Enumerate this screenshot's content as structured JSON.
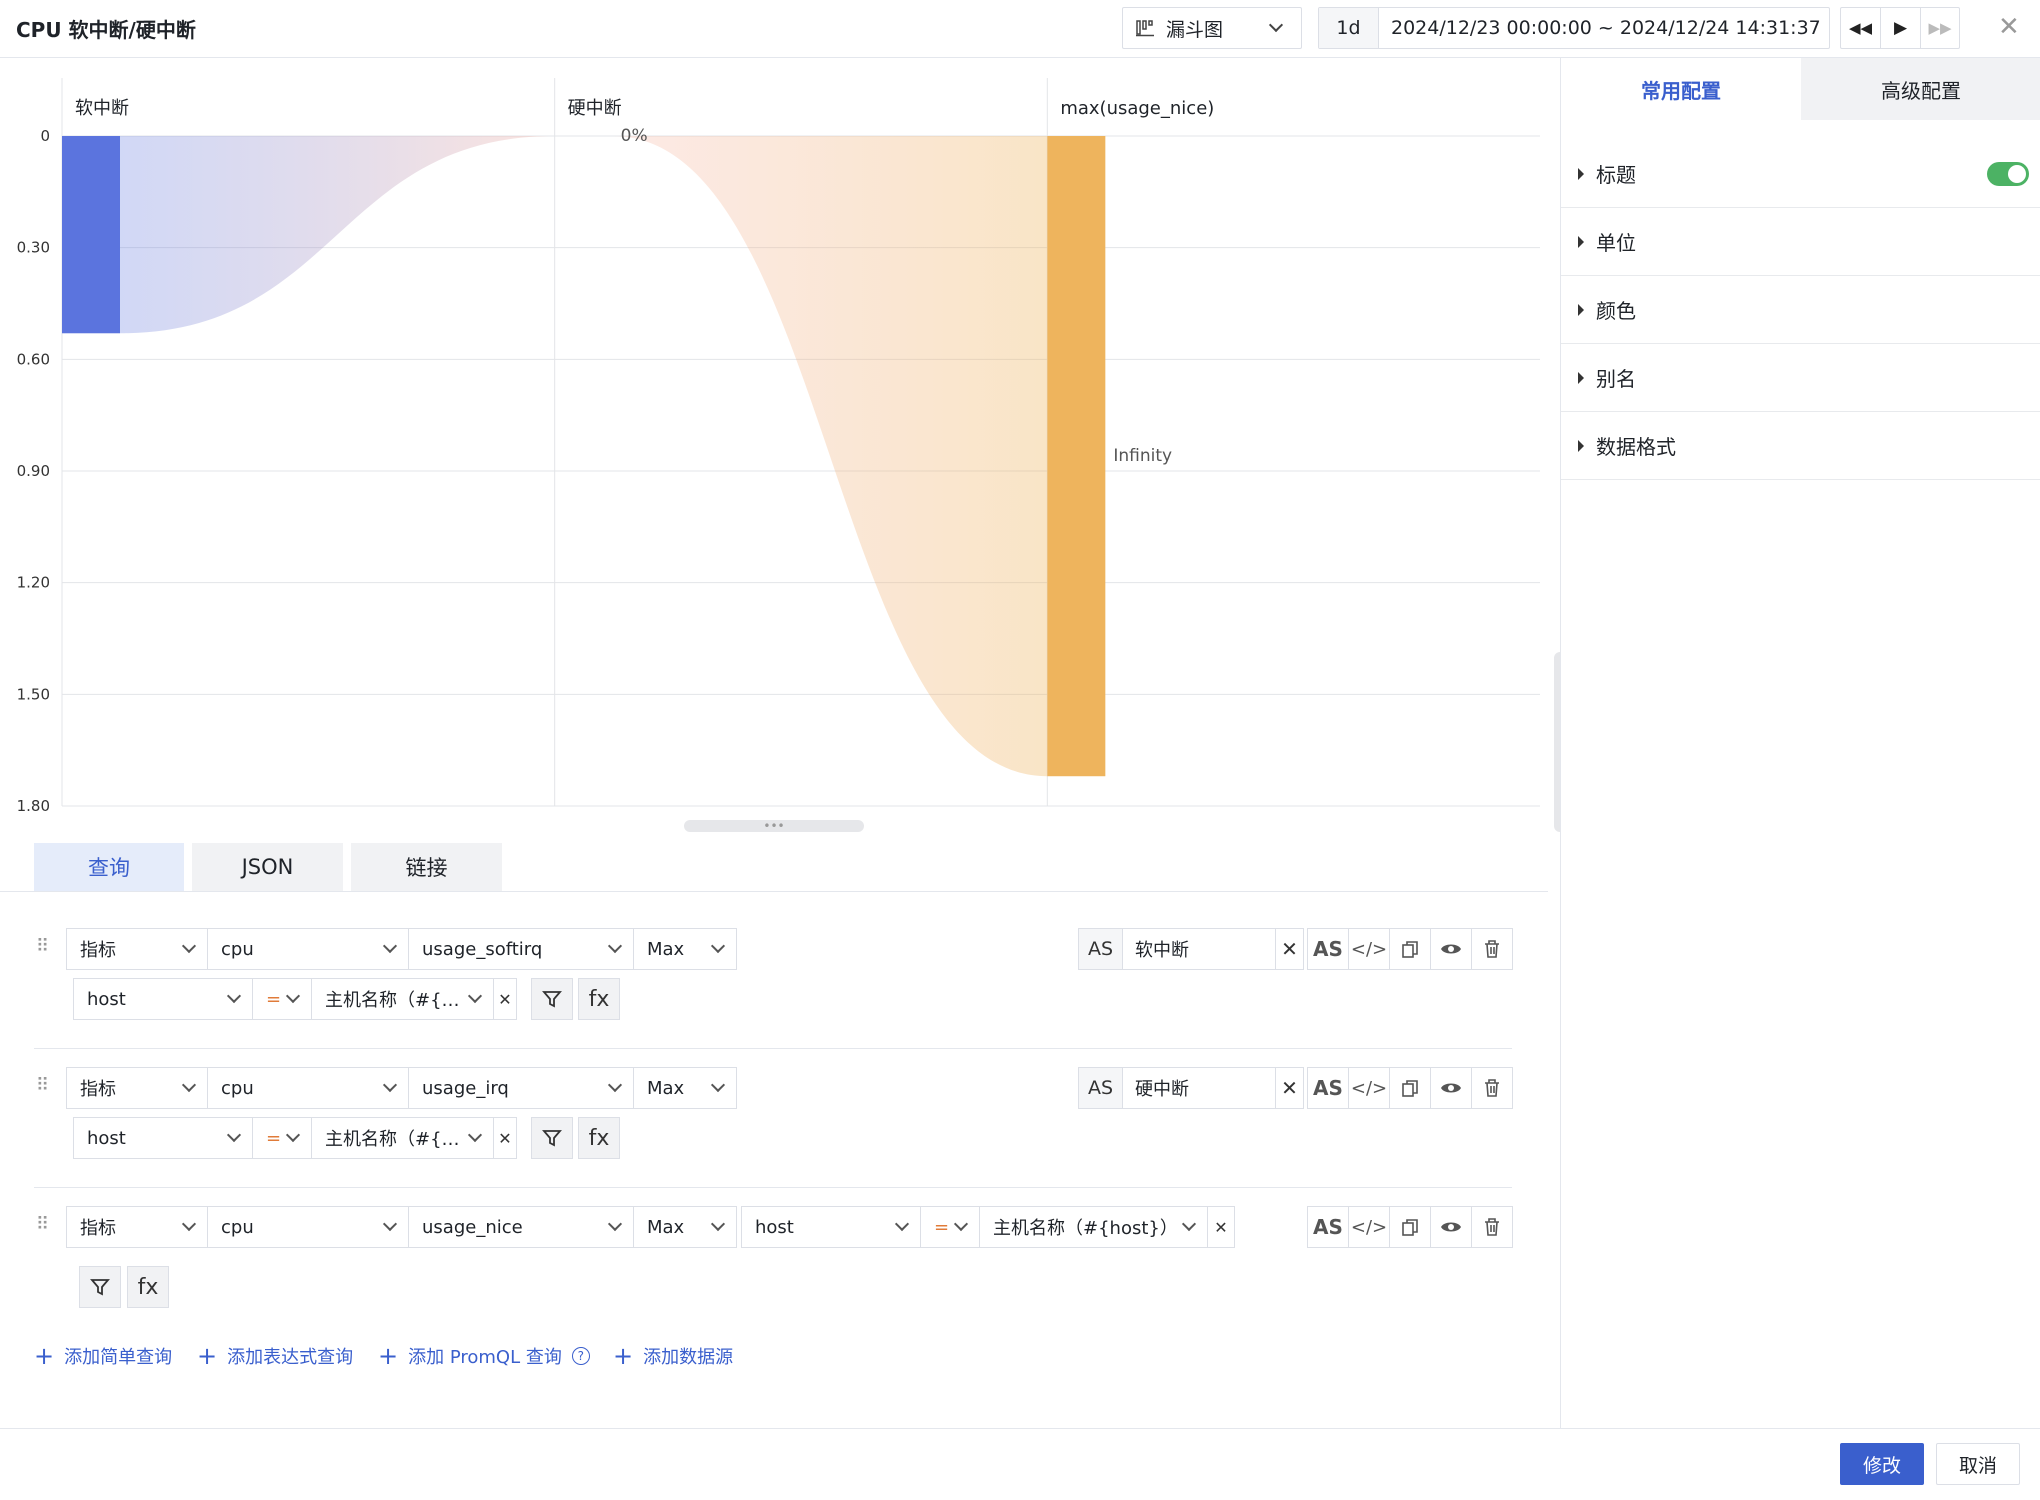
{
  "header": {
    "title": "CPU 软中断/硬中断",
    "chart_type": "漏斗图",
    "range_short": "1d",
    "time_range": "2024/12/23 00:00:00 ~ 2024/12/24 14:31:37"
  },
  "right_panel": {
    "tabs": [
      "常用配置",
      "高级配置"
    ],
    "sections": [
      "标题",
      "单位",
      "颜色",
      "别名",
      "数据格式"
    ],
    "title_toggle_on": true
  },
  "query_tabs": [
    "查询",
    "JSON",
    "链接"
  ],
  "queries": [
    {
      "type": "指标",
      "measurement": "cpu",
      "field": "usage_softirq",
      "agg": "Max",
      "tag": "host",
      "op": "=",
      "value": "主机名称（#{…",
      "alias": "软中断"
    },
    {
      "type": "指标",
      "measurement": "cpu",
      "field": "usage_irq",
      "agg": "Max",
      "tag": "host",
      "op": "=",
      "value": "主机名称（#{…",
      "alias": "硬中断"
    },
    {
      "type": "指标",
      "measurement": "cpu",
      "field": "usage_nice",
      "agg": "Max",
      "tag": "host",
      "op": "=",
      "value": "主机名称（#{host}）"
    }
  ],
  "add_links": [
    "添加简单查询",
    "添加表达式查询",
    "添加 PromQL 查询",
    "添加数据源"
  ],
  "footer": {
    "confirm": "修改",
    "cancel": "取消"
  },
  "labels": {
    "as": "AS",
    "fx": "fx"
  },
  "chart_data": {
    "type": "funnel",
    "columns": [
      "软中断",
      "硬中断",
      "max(usage_nice)"
    ],
    "values": [
      0.53,
      0,
      1.72
    ],
    "data_labels": [
      "",
      "0%",
      "Infinity"
    ],
    "colors": [
      "#5b74de",
      "#f4b2a3",
      "#eeb45d"
    ],
    "yticks": [
      "0",
      "0.30",
      "0.60",
      "0.90",
      "1.20",
      "1.50",
      "1.80"
    ],
    "ylim": [
      0,
      1.8
    ]
  }
}
